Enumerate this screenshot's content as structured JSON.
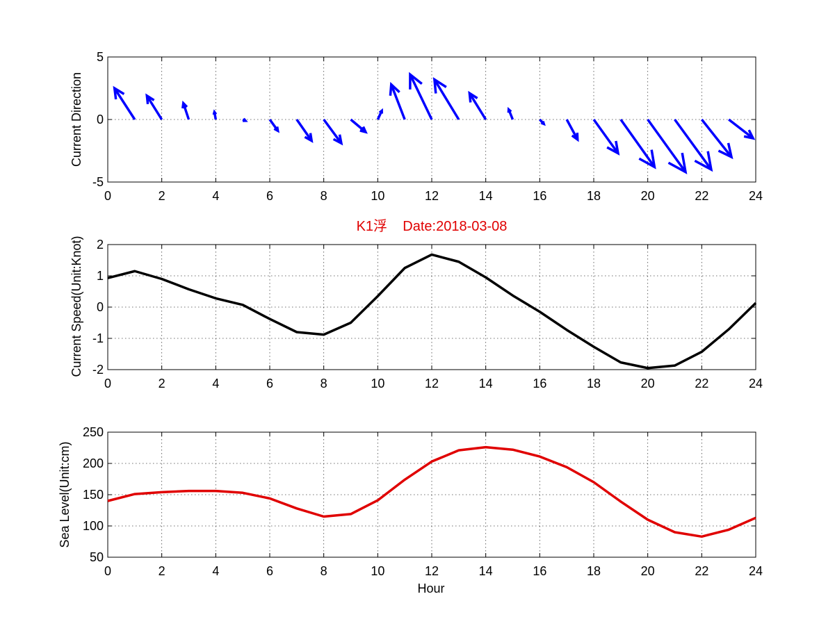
{
  "chart_data": [
    {
      "type": "quiver",
      "ylabel": "Current Direction",
      "xlabel": "",
      "xlim": [
        0,
        24
      ],
      "ylim": [
        -5,
        5
      ],
      "xticks": [
        0,
        2,
        4,
        6,
        8,
        10,
        12,
        14,
        16,
        18,
        20,
        22,
        24
      ],
      "yticks": [
        -5,
        0,
        5
      ],
      "grid": true,
      "color": "#0000ff",
      "arrows": [
        {
          "x": 1,
          "u": -0.75,
          "v": 2.5
        },
        {
          "x": 2,
          "u": -0.55,
          "v": 1.9
        },
        {
          "x": 3,
          "u": -0.2,
          "v": 1.3
        },
        {
          "x": 4,
          "u": -0.05,
          "v": 0.6
        },
        {
          "x": 5,
          "u": 0.1,
          "v": -0.1
        },
        {
          "x": 6,
          "u": 0.3,
          "v": -0.9
        },
        {
          "x": 7,
          "u": 0.55,
          "v": -1.7
        },
        {
          "x": 8,
          "u": 0.65,
          "v": -1.9
        },
        {
          "x": 9,
          "u": 0.55,
          "v": -1.0
        },
        {
          "x": 10,
          "u": 0.15,
          "v": 0.7
        },
        {
          "x": 11,
          "u": -0.5,
          "v": 2.8
        },
        {
          "x": 12,
          "u": -0.8,
          "v": 3.6
        },
        {
          "x": 13,
          "u": -0.9,
          "v": 3.2
        },
        {
          "x": 14,
          "u": -0.6,
          "v": 2.1
        },
        {
          "x": 15,
          "u": -0.15,
          "v": 0.8
        },
        {
          "x": 16,
          "u": 0.15,
          "v": -0.35
        },
        {
          "x": 17,
          "u": 0.4,
          "v": -1.6
        },
        {
          "x": 18,
          "u": 0.9,
          "v": -2.7
        },
        {
          "x": 19,
          "u": 1.25,
          "v": -3.8
        },
        {
          "x": 20,
          "u": 1.4,
          "v": -4.2
        },
        {
          "x": 21,
          "u": 1.35,
          "v": -4.0
        },
        {
          "x": 22,
          "u": 1.1,
          "v": -3.0
        },
        {
          "x": 23,
          "u": 0.9,
          "v": -1.5
        }
      ]
    },
    {
      "type": "line",
      "title": "K1浮    Date:2018-03-08",
      "ylabel": "Current Speed(Unit:Knot)",
      "xlabel": "",
      "xlim": [
        0,
        24
      ],
      "ylim": [
        -2,
        2
      ],
      "xticks": [
        0,
        2,
        4,
        6,
        8,
        10,
        12,
        14,
        16,
        18,
        20,
        22,
        24
      ],
      "yticks": [
        -2,
        -1,
        0,
        1,
        2
      ],
      "grid": true,
      "color": "#000000",
      "x": [
        0,
        1,
        2,
        3,
        4,
        5,
        6,
        7,
        8,
        9,
        10,
        11,
        12,
        13,
        14,
        15,
        16,
        17,
        18,
        19,
        20,
        21,
        22,
        23,
        24
      ],
      "y": [
        0.93,
        1.15,
        0.9,
        0.57,
        0.28,
        0.07,
        -0.38,
        -0.8,
        -0.88,
        -0.5,
        0.35,
        1.25,
        1.68,
        1.45,
        0.95,
        0.37,
        -0.15,
        -0.73,
        -1.27,
        -1.77,
        -1.95,
        -1.87,
        -1.43,
        -0.71,
        0.13
      ]
    },
    {
      "type": "line",
      "ylabel": "Sea Level(Unit:cm)",
      "xlabel": "Hour",
      "xlim": [
        0,
        24
      ],
      "ylim": [
        50,
        250
      ],
      "xticks": [
        0,
        2,
        4,
        6,
        8,
        10,
        12,
        14,
        16,
        18,
        20,
        22,
        24
      ],
      "yticks": [
        50,
        100,
        150,
        200,
        250
      ],
      "grid": true,
      "color": "#e00000",
      "x": [
        0,
        1,
        2,
        3,
        4,
        5,
        6,
        7,
        8,
        9,
        10,
        11,
        12,
        13,
        14,
        15,
        16,
        17,
        18,
        19,
        20,
        21,
        22,
        23,
        24
      ],
      "y": [
        140,
        151,
        154,
        156,
        156,
        153,
        144,
        128,
        115,
        119,
        141,
        174,
        203,
        221,
        226,
        222,
        211,
        194,
        170,
        139,
        110,
        90,
        83,
        94,
        113
      ]
    }
  ]
}
